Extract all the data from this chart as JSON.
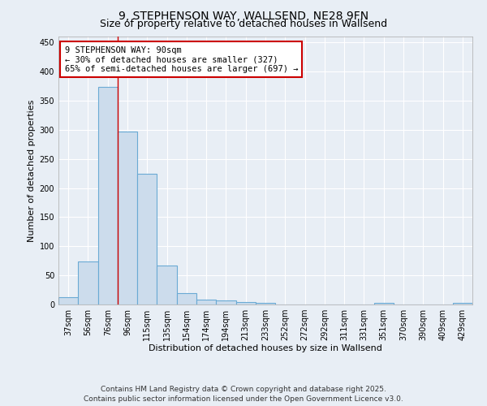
{
  "title1": "9, STEPHENSON WAY, WALLSEND, NE28 9FN",
  "title2": "Size of property relative to detached houses in Wallsend",
  "xlabel": "Distribution of detached houses by size in Wallsend",
  "ylabel": "Number of detached properties",
  "categories": [
    "37sqm",
    "56sqm",
    "76sqm",
    "96sqm",
    "115sqm",
    "135sqm",
    "154sqm",
    "174sqm",
    "194sqm",
    "213sqm",
    "233sqm",
    "252sqm",
    "272sqm",
    "292sqm",
    "311sqm",
    "331sqm",
    "351sqm",
    "370sqm",
    "390sqm",
    "409sqm",
    "429sqm"
  ],
  "values": [
    12,
    74,
    373,
    297,
    225,
    67,
    20,
    8,
    7,
    4,
    3,
    0,
    0,
    0,
    0,
    0,
    3,
    0,
    0,
    0,
    3
  ],
  "bar_color": "#ccdcec",
  "bar_edge_color": "#6aaad4",
  "bar_linewidth": 0.8,
  "red_line_x": 2.5,
  "red_line_color": "#cc0000",
  "annotation_line1": "9 STEPHENSON WAY: 90sqm",
  "annotation_line2": "← 30% of detached houses are smaller (327)",
  "annotation_line3": "65% of semi-detached houses are larger (697) →",
  "annotation_box_color": "#ffffff",
  "annotation_box_edge": "#cc0000",
  "ylim": [
    0,
    460
  ],
  "yticks": [
    0,
    50,
    100,
    150,
    200,
    250,
    300,
    350,
    400,
    450
  ],
  "bg_color": "#e8eef5",
  "plot_bg_color": "#e8eef5",
  "grid_color": "#ffffff",
  "footer_text": "Contains HM Land Registry data © Crown copyright and database right 2025.\nContains public sector information licensed under the Open Government Licence v3.0.",
  "title_fontsize": 10,
  "subtitle_fontsize": 9,
  "label_fontsize": 8,
  "tick_fontsize": 7,
  "annot_fontsize": 7.5,
  "footer_fontsize": 6.5
}
